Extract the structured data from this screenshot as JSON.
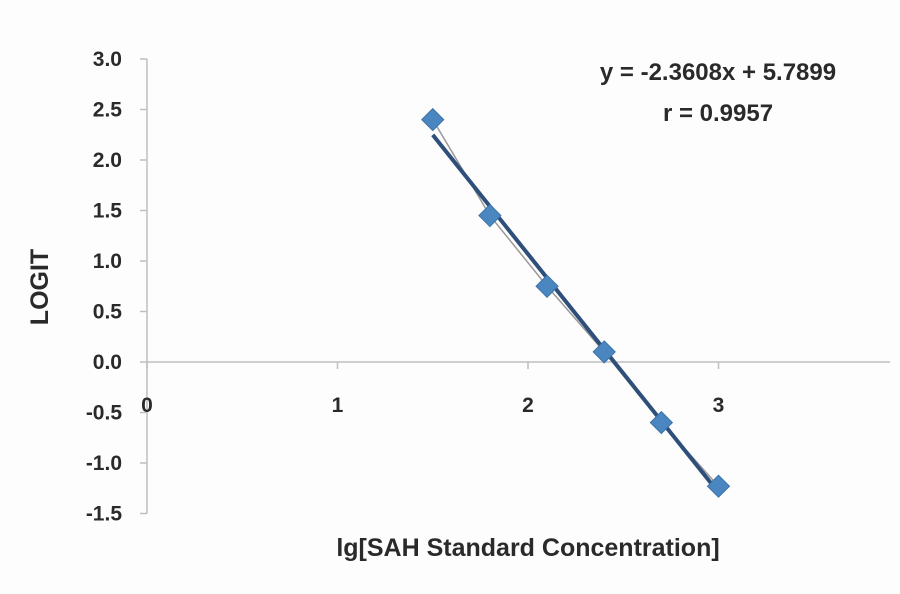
{
  "chart_data": {
    "type": "scatter",
    "xlabel": "lg[SAH Standard Concentration]",
    "ylabel": "LOGIT",
    "xlim": [
      0,
      3.9
    ],
    "ylim": [
      -1.5,
      3.0
    ],
    "x_ticks": [
      0,
      1,
      2,
      3
    ],
    "y_ticks": [
      3.0,
      2.5,
      2.0,
      1.5,
      1.0,
      0.5,
      0.0,
      -0.5,
      -1.0,
      -1.5
    ],
    "x_tick_labels": [
      "0",
      "1",
      "2",
      "3"
    ],
    "y_tick_labels": [
      "3.0",
      "2.5",
      "2.0",
      "1.5",
      "1.0",
      "0.5",
      "0.0",
      "-0.5",
      "-1.0",
      "-1.5"
    ],
    "grid": false,
    "series": [
      {
        "points": [
          {
            "x": 1.5,
            "y": 2.4
          },
          {
            "x": 1.8,
            "y": 1.45
          },
          {
            "x": 2.1,
            "y": 0.75
          },
          {
            "x": 2.4,
            "y": 0.1
          },
          {
            "x": 2.7,
            "y": -0.6
          },
          {
            "x": 3.0,
            "y": -1.23
          }
        ],
        "color": "#4a86bf"
      }
    ],
    "trendline": {
      "slope": -2.3608,
      "intercept": 5.7899,
      "color": "#2d4f7a"
    },
    "annotations": {
      "equation": "y = -2.3608x + 5.7899",
      "r": "r = 0.9957"
    }
  }
}
